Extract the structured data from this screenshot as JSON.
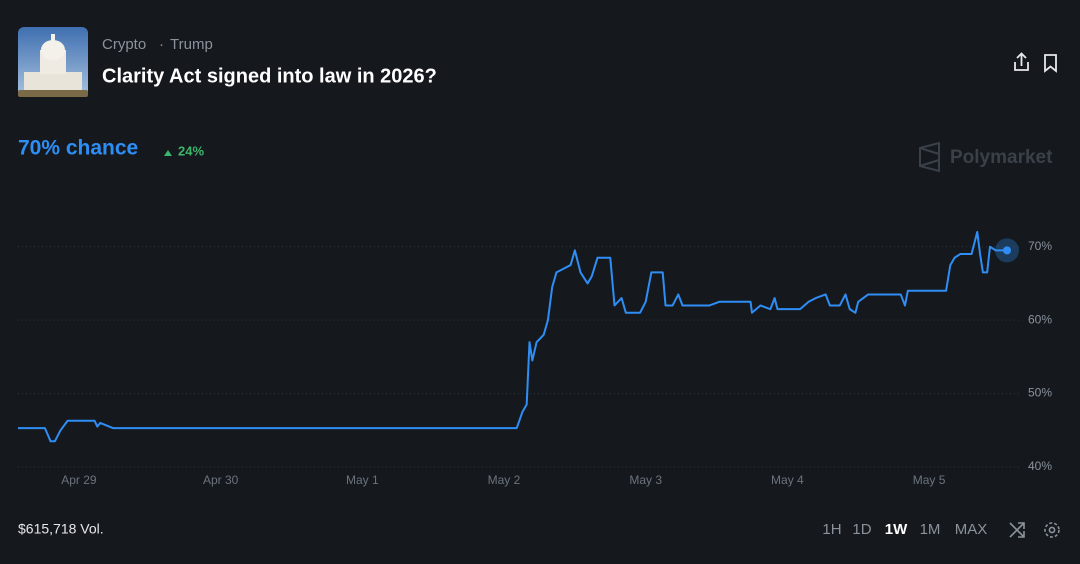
{
  "header": {
    "category": [
      "Crypto",
      "Trump"
    ],
    "separator": "·",
    "title": "Clarity Act signed into law in 2026?"
  },
  "odds": {
    "chance": "70% chance",
    "change": "24%"
  },
  "brand": "Polymarket",
  "volume": "$615,718 Vol.",
  "range_buttons": [
    "1H",
    "1D",
    "1W",
    "1M",
    "MAX"
  ],
  "chart_data": {
    "type": "line",
    "color": "#2e8ef5",
    "grid": true,
    "x": [
      -0.43,
      -0.24,
      -0.2,
      -0.17,
      -0.13,
      -0.08,
      0.11,
      0.13,
      0.15,
      0.24,
      3.09,
      3.13,
      3.16,
      3.18,
      3.2,
      3.23,
      3.28,
      3.31,
      3.34,
      3.37,
      3.42,
      3.47,
      3.5,
      3.54,
      3.59,
      3.62,
      3.66,
      3.75,
      3.78,
      3.83,
      3.86,
      3.96,
      4.0,
      4.04,
      4.12,
      4.14,
      4.19,
      4.23,
      4.26,
      4.45,
      4.52,
      4.74,
      4.75,
      4.81,
      4.88,
      4.91,
      4.93,
      5.09,
      5.15,
      5.2,
      5.27,
      5.3,
      5.37,
      5.41,
      5.44,
      5.48,
      5.5,
      5.57,
      5.8,
      5.83,
      5.85,
      6.01,
      6.12,
      6.15,
      6.18,
      6.22,
      6.3,
      6.34,
      6.36,
      6.38,
      6.41,
      6.43,
      6.47,
      6.55
    ],
    "values": [
      45.3,
      45.3,
      43.5,
      43.5,
      45,
      46.3,
      46.3,
      45.5,
      46,
      45.3,
      45.3,
      47.5,
      48.5,
      57,
      54.5,
      57,
      58,
      60,
      64.5,
      66.5,
      67,
      67.5,
      69.5,
      66.5,
      65,
      66,
      68.5,
      68.5,
      62,
      63,
      61,
      61,
      62.5,
      66.5,
      66.5,
      62,
      62,
      63.5,
      62,
      62,
      62.5,
      62.5,
      61,
      62,
      61.5,
      63,
      61.5,
      61.5,
      62.5,
      63,
      63.5,
      62,
      62,
      63.5,
      61.5,
      61,
      62.5,
      63.5,
      63.5,
      62,
      64,
      64,
      64,
      67.5,
      68.5,
      69,
      69,
      72,
      69,
      66.5,
      66.5,
      70,
      69.5,
      69.5
    ],
    "xlim": [
      -0.43,
      6.55
    ],
    "xticks": [
      {
        "value": 0,
        "label": "Apr 29"
      },
      {
        "value": 1,
        "label": "Apr 30"
      },
      {
        "value": 2,
        "label": "May 1"
      },
      {
        "value": 3,
        "label": "May 2"
      },
      {
        "value": 4,
        "label": "May 3"
      },
      {
        "value": 5,
        "label": "May 4"
      },
      {
        "value": 6,
        "label": "May 5"
      }
    ],
    "ylim": [
      40,
      75
    ],
    "yticks": [
      {
        "value": 40,
        "label": "40%"
      },
      {
        "value": 50,
        "label": "50%"
      },
      {
        "value": 60,
        "label": "60%"
      },
      {
        "value": 70,
        "label": "70%"
      }
    ]
  }
}
